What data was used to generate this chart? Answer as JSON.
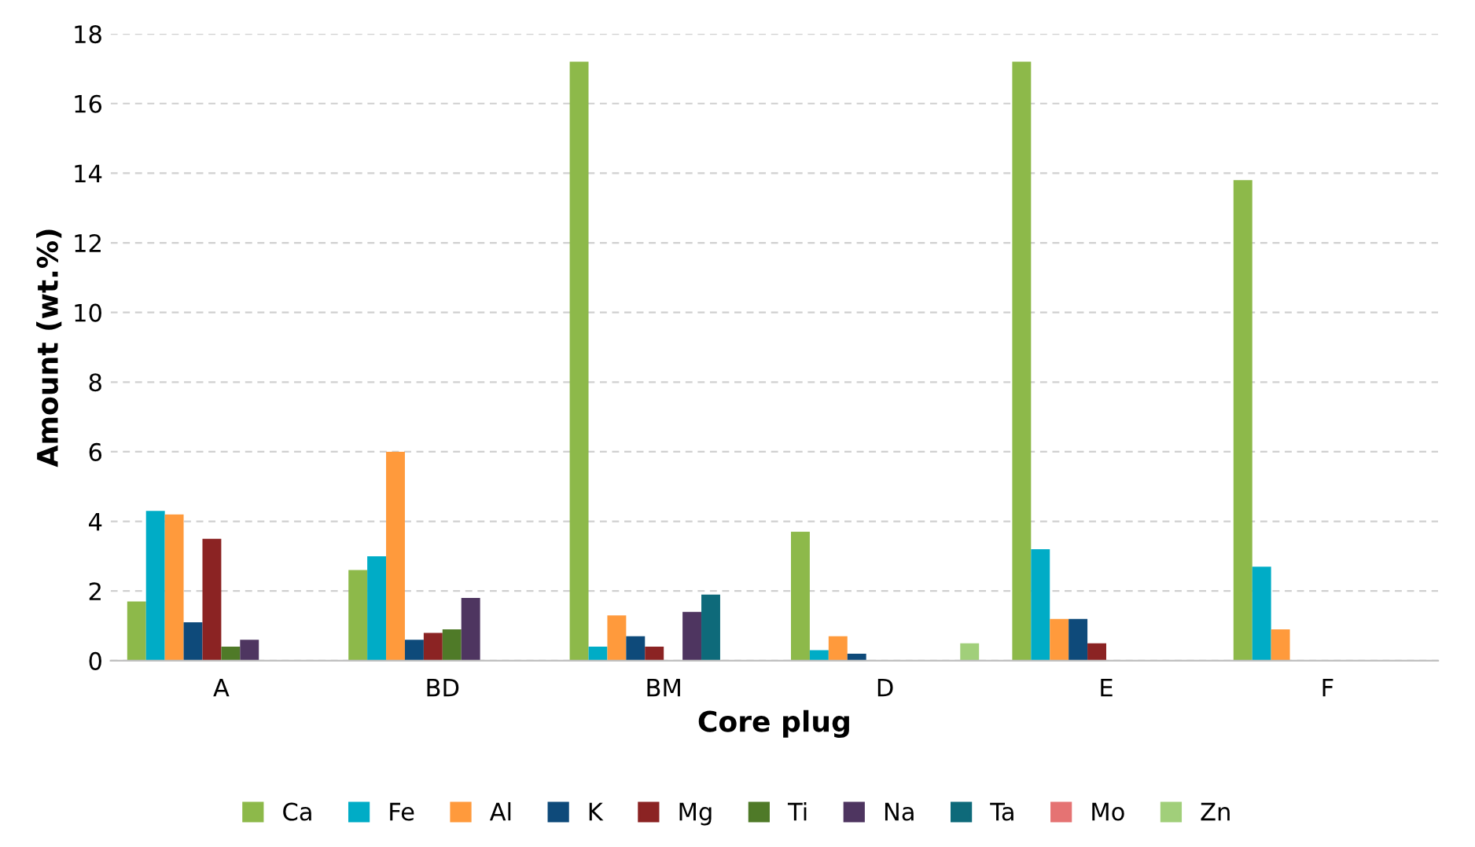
{
  "chart_data": {
    "type": "bar",
    "xlabel": "Core plug",
    "ylabel": "Amount (wt.%)",
    "categories": [
      "A",
      "BD",
      "BM",
      "D",
      "E",
      "F"
    ],
    "series": [
      {
        "name": "Ca",
        "color": "#8db94a",
        "values": [
          1.7,
          2.6,
          17.2,
          3.7,
          17.2,
          13.8
        ]
      },
      {
        "name": "Fe",
        "color": "#00acc6",
        "values": [
          4.3,
          3.0,
          0.4,
          0.3,
          3.2,
          2.7
        ]
      },
      {
        "name": "Al",
        "color": "#ff9a3c",
        "values": [
          4.2,
          6.0,
          1.3,
          0.7,
          1.2,
          0.9
        ]
      },
      {
        "name": "K",
        "color": "#0e4a7a",
        "values": [
          1.1,
          0.6,
          0.7,
          0.2,
          1.2,
          0
        ]
      },
      {
        "name": "Mg",
        "color": "#8b2323",
        "values": [
          3.5,
          0.8,
          0.4,
          0,
          0.5,
          0
        ]
      },
      {
        "name": "Ti",
        "color": "#4f7a28",
        "values": [
          0.4,
          0.9,
          0,
          0,
          0,
          0
        ]
      },
      {
        "name": "Na",
        "color": "#4e3560",
        "values": [
          0.6,
          1.8,
          1.4,
          0,
          0,
          0
        ]
      },
      {
        "name": "Ta",
        "color": "#0e6a7a",
        "values": [
          0,
          0,
          1.9,
          0,
          0,
          0
        ]
      },
      {
        "name": "Mo",
        "color": "#e57373",
        "values": [
          0,
          0,
          0,
          0,
          0,
          0
        ]
      },
      {
        "name": "Zn",
        "color": "#a1cf7a",
        "values": [
          0,
          0,
          0,
          0.5,
          0,
          0
        ]
      }
    ],
    "ylim": [
      0,
      18
    ],
    "yticks": [
      0,
      2,
      4,
      6,
      8,
      10,
      12,
      14,
      16,
      18
    ],
    "grid": "y",
    "legend": "bottom"
  }
}
